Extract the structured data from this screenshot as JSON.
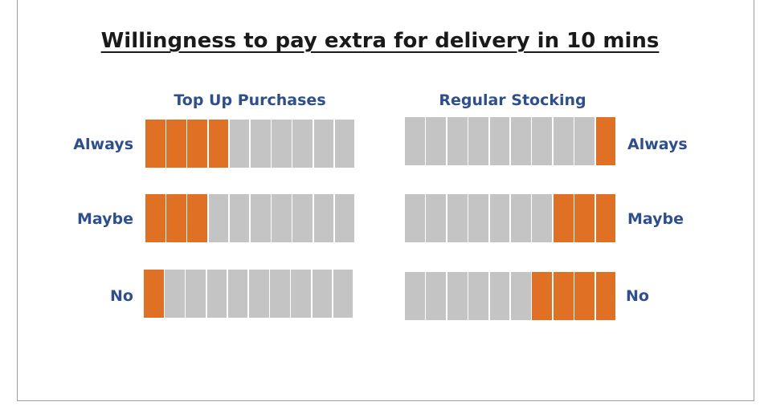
{
  "chart_data": {
    "type": "table",
    "title": "Willingness to pay extra for delivery in 10 mins",
    "units_per_row": 10,
    "colors": {
      "highlighted": "#e07024",
      "remaining": "#c4c4c4",
      "label": "#2e4f8f"
    },
    "panels": [
      {
        "name": "Top Up Purchases",
        "rows": [
          {
            "label": "Always",
            "highlighted": 4
          },
          {
            "label": "Maybe",
            "highlighted": 3
          },
          {
            "label": "No",
            "highlighted": 1
          }
        ]
      },
      {
        "name": "Regular Stocking",
        "rows": [
          {
            "label": "Always",
            "highlighted": 1
          },
          {
            "label": "Maybe",
            "highlighted": 3
          },
          {
            "label": "No",
            "highlighted": 4
          }
        ]
      }
    ]
  }
}
